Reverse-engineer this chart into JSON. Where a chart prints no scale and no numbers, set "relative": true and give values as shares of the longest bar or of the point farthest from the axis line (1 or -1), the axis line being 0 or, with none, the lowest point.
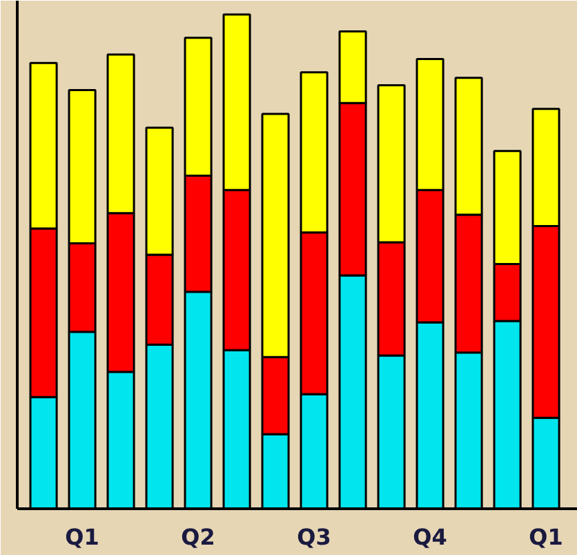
{
  "chart_data": {
    "type": "bar",
    "stacked": true,
    "relative": true,
    "categories": [
      null,
      "Q1",
      null,
      null,
      "Q2",
      null,
      null,
      "Q3",
      null,
      null,
      "Q4",
      null,
      null,
      "Q1"
    ],
    "series": [
      {
        "color": "#00e5ee",
        "values": [
          0.226,
          0.358,
          0.277,
          0.332,
          0.439,
          0.321,
          0.151,
          0.232,
          0.472,
          0.31,
          0.377,
          0.316,
          0.38,
          0.184
        ]
      },
      {
        "color": "#ff0000",
        "values": [
          0.341,
          0.179,
          0.321,
          0.182,
          0.235,
          0.324,
          0.156,
          0.327,
          0.349,
          0.229,
          0.268,
          0.279,
          0.115,
          0.388
        ]
      },
      {
        "color": "#ffff00",
        "values": [
          0.335,
          0.31,
          0.321,
          0.257,
          0.279,
          0.355,
          0.492,
          0.324,
          0.145,
          0.318,
          0.265,
          0.277,
          0.229,
          0.237
        ]
      }
    ],
    "grid": false
  }
}
